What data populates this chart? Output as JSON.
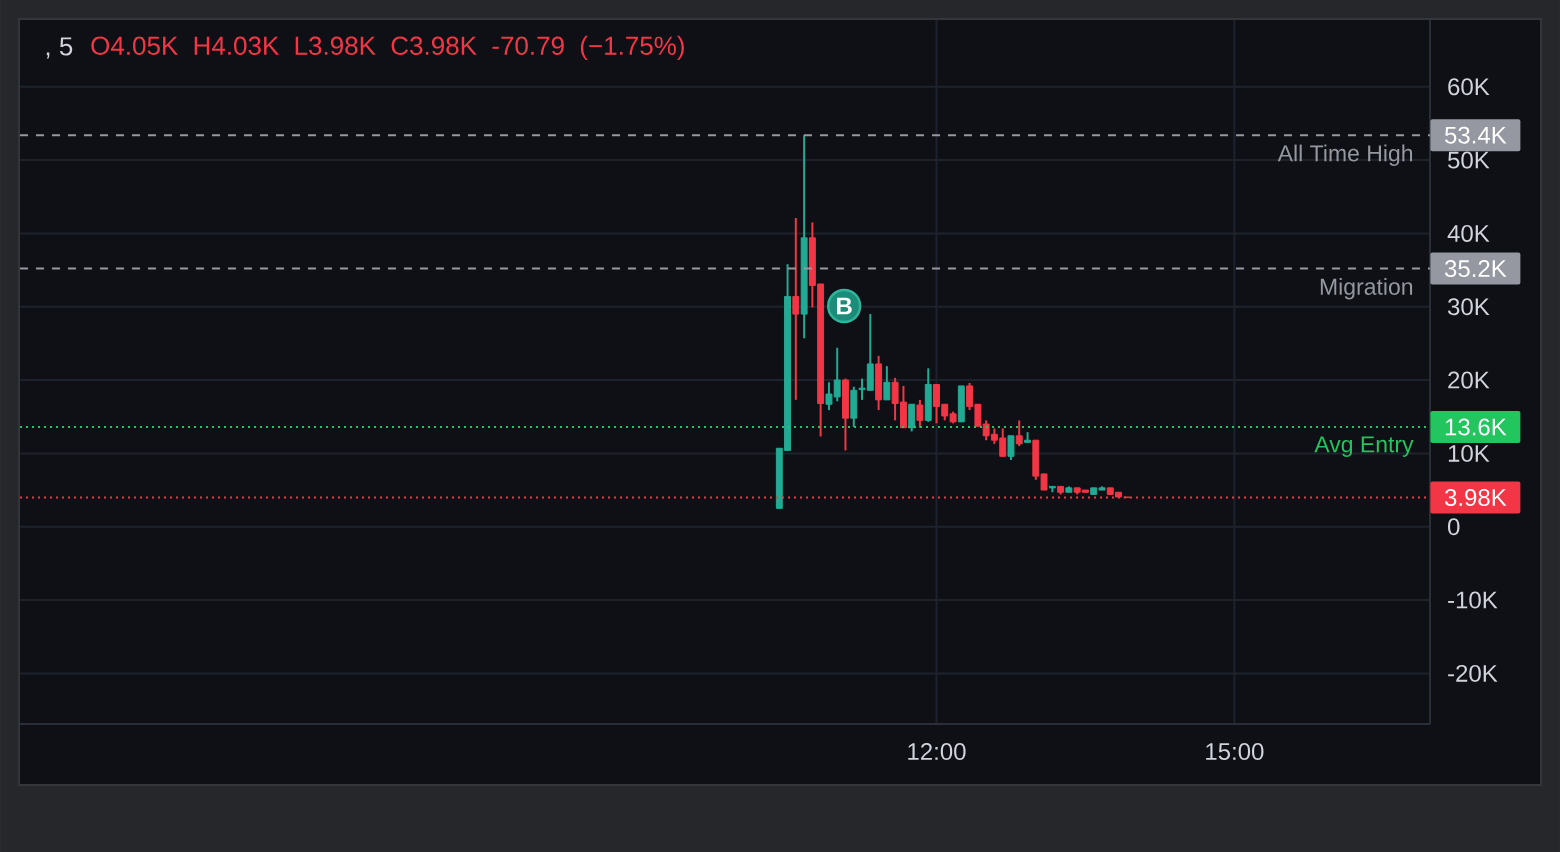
{
  "chart_data": {
    "type": "candlestick",
    "title": ", 5",
    "subtitle": "O4.05K H4.03K L3.98K C3.98K -70.79 (−1.75%)",
    "x": [
      10.417,
      10.5,
      10.583,
      10.667,
      10.75,
      10.833,
      10.917,
      11,
      11.083,
      11.167,
      11.25,
      11.333,
      11.417,
      11.5,
      11.583,
      11.667,
      11.75,
      11.833,
      11.917,
      12,
      12.083,
      12.167,
      12.25,
      12.333,
      12.417,
      12.5,
      12.583,
      12.667,
      12.75,
      12.833,
      12.917,
      13,
      13.083,
      13.167,
      13.25,
      13.333,
      13.417,
      13.5,
      13.583,
      13.667,
      13.75,
      13.833,
      13.917
    ],
    "ohlc": [
      [
        2500,
        10700,
        2500,
        10700
      ],
      [
        10400,
        35800,
        10400,
        31400
      ],
      [
        31400,
        42100,
        17300,
        29000
      ],
      [
        29000,
        53400,
        25700,
        39400
      ],
      [
        39400,
        41500,
        29900,
        32900
      ],
      [
        33100,
        33100,
        12300,
        16800
      ],
      [
        16700,
        19700,
        15900,
        18100
      ],
      [
        17700,
        24400,
        17100,
        20000
      ],
      [
        20000,
        20200,
        10400,
        14800
      ],
      [
        14800,
        19100,
        13600,
        18600
      ],
      [
        18700,
        20200,
        17300,
        18900
      ],
      [
        18600,
        29000,
        18600,
        22200
      ],
      [
        22200,
        23300,
        15900,
        17300
      ],
      [
        17300,
        21900,
        17300,
        19700
      ],
      [
        19700,
        20300,
        14500,
        16800
      ],
      [
        17000,
        19200,
        13500,
        13500
      ],
      [
        13500,
        16700,
        13000,
        16700
      ],
      [
        16600,
        17300,
        13500,
        14500
      ],
      [
        14500,
        21600,
        14300,
        19400
      ],
      [
        19400,
        19400,
        14100,
        16400
      ],
      [
        16700,
        16700,
        14500,
        15100
      ],
      [
        15400,
        15700,
        14100,
        14300
      ],
      [
        14300,
        19200,
        14300,
        19200
      ],
      [
        19200,
        19600,
        15900,
        16400
      ],
      [
        16700,
        16700,
        13700,
        13700
      ],
      [
        14000,
        14500,
        11800,
        12400
      ],
      [
        12600,
        13400,
        11300,
        11800
      ],
      [
        12100,
        13400,
        9600,
        9600
      ],
      [
        9600,
        12400,
        9100,
        12400
      ],
      [
        12400,
        14500,
        11000,
        11300
      ],
      [
        11500,
        12900,
        11500,
        11800
      ],
      [
        11800,
        11800,
        6400,
        6900
      ],
      [
        7200,
        7200,
        5000,
        5000
      ],
      [
        5300,
        5500,
        4700,
        5500
      ],
      [
        5500,
        5500,
        4400,
        4700
      ],
      [
        4700,
        5500,
        4700,
        5300
      ],
      [
        5300,
        5300,
        4400,
        4700
      ],
      [
        5000,
        5000,
        4700,
        4700
      ],
      [
        4400,
        5300,
        4400,
        5300
      ],
      [
        5000,
        5500,
        5000,
        5300
      ],
      [
        5300,
        5300,
        4400,
        4400
      ],
      [
        4700,
        4700,
        4050,
        4050
      ],
      [
        4050,
        4050,
        3980,
        3980
      ]
    ],
    "colors": [
      "#22ab94",
      "#22ab94",
      "#f23645",
      "#22ab94",
      "#f23645",
      "#f23645",
      "#22ab94",
      "#22ab94",
      "#f23645",
      "#22ab94",
      "#22ab94",
      "#22ab94",
      "#f23645",
      "#22ab94",
      "#f23645",
      "#f23645",
      "#22ab94",
      "#f23645",
      "#22ab94",
      "#f23645",
      "#f23645",
      "#f23645",
      "#22ab94",
      "#f23645",
      "#f23645",
      "#f23645",
      "#f23645",
      "#f23645",
      "#22ab94",
      "#f23645",
      "#22ab94",
      "#f23645",
      "#f23645",
      "#22ab94",
      "#f23645",
      "#22ab94",
      "#f23645",
      "#f23645",
      "#22ab94",
      "#22ab94",
      "#f23645",
      "#f23645",
      "#f23645"
    ],
    "xlim": [
      2.77,
      16.97
    ],
    "xticks": [
      {
        "value": 12,
        "label": "12:00"
      },
      {
        "value": 15,
        "label": "15:00"
      }
    ],
    "ylim": [
      -26900,
      69100
    ],
    "yticks": [
      {
        "value": -20000,
        "label": "-20K"
      },
      {
        "value": -10000,
        "label": "-10K"
      },
      0,
      {
        "value": 10000,
        "label": "10K"
      },
      {
        "value": 20000,
        "label": "20K"
      },
      {
        "value": 30000,
        "label": "30K"
      },
      {
        "value": 40000,
        "label": "40K"
      },
      {
        "value": 50000,
        "label": "50K"
      },
      {
        "value": 60000,
        "label": "60K"
      }
    ],
    "grid": true,
    "ref_lines": [
      {
        "axis": "y",
        "value": 53400,
        "label": "All Time High",
        "color": "#9598a1",
        "line_style": "dashed"
      },
      {
        "axis": "y",
        "value": 35200,
        "label": "Migration",
        "color": "#9598a1",
        "line_style": "dashed"
      },
      {
        "axis": "y",
        "value": 13600,
        "label": "Avg Entry",
        "color": "#22c55e",
        "line_style": "dotted"
      },
      {
        "axis": "y",
        "value": 3980,
        "color": "#f23645",
        "line_style": "dotted"
      }
    ],
    "annotations": [
      {
        "text": "B",
        "x": 11.07,
        "y": 30100
      },
      "53.4K",
      "35.2K",
      "13.6K",
      "3.98K"
    ]
  }
}
